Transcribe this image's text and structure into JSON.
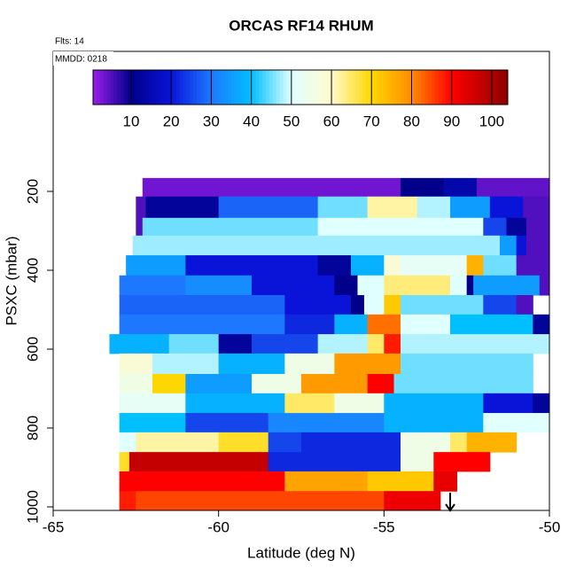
{
  "chart_data": {
    "type": "heatmap",
    "title": "ORCAS RF14 RHUM",
    "notes": [
      "Flts: 14",
      "MMDD: 0218"
    ],
    "x_label": "Latitude (deg N)",
    "y_label": "PSXC (mbar)",
    "xlim": [
      -65,
      -50
    ],
    "xticks": [
      -65,
      -60,
      -55,
      -50
    ],
    "ylim": [
      1009,
      -155
    ],
    "yticks": [
      200,
      400,
      600,
      800,
      1000
    ],
    "colorbar_lim": [
      0.5,
      104
    ],
    "colorbar_ticks": [
      10,
      20,
      30,
      40,
      50,
      60,
      70,
      80,
      90,
      100
    ],
    "colorscale": [
      [
        0,
        "#a020f0"
      ],
      [
        10,
        "#00008b"
      ],
      [
        20,
        "#0a14d8"
      ],
      [
        30,
        "#1e78ff"
      ],
      [
        40,
        "#00bfff"
      ],
      [
        50,
        "#e0ffff"
      ],
      [
        60,
        "#fffacd"
      ],
      [
        70,
        "#ffd700"
      ],
      [
        80,
        "#ff8c00"
      ],
      [
        90,
        "#ff0000"
      ],
      [
        104,
        "#8b0000"
      ]
    ],
    "rows": [
      {
        "p": [
          166,
          213
        ],
        "lat_edges": [
          -62.3,
          -54.5,
          -53.2,
          -52.2,
          -50
        ],
        "values": [
          3,
          10,
          14,
          4
        ]
      },
      {
        "p": [
          213,
          267
        ],
        "lat_edges": [
          -62.5,
          -62.2,
          -60,
          -57,
          -55.5,
          -54,
          -53,
          -51.8,
          -50.8,
          -50
        ],
        "values": [
          5,
          12,
          28,
          45,
          62,
          48,
          35,
          20,
          5
        ]
      },
      {
        "p": [
          267,
          312
        ],
        "lat_edges": [
          -62.5,
          -62.3,
          -57,
          -52,
          -51.3,
          -50.7,
          -50
        ],
        "values": [
          5,
          45,
          50,
          25,
          12,
          5
        ]
      },
      {
        "p": [
          312,
          362
        ],
        "lat_edges": [
          -62.6,
          -51.5,
          -51,
          -50.7,
          -50
        ],
        "values": [
          47,
          35,
          20,
          5
        ]
      },
      {
        "p": [
          362,
          413
        ],
        "lat_edges": [
          -62.8,
          -61,
          -57,
          -56,
          -55,
          -54.5,
          -52.5,
          -52,
          -51,
          -50
        ],
        "values": [
          35,
          20,
          12,
          38,
          58,
          52,
          75,
          45,
          5
        ]
      },
      {
        "p": [
          413,
          463
        ],
        "lat_edges": [
          -63,
          -61,
          -59,
          -56.5,
          -55.8,
          -55,
          -53,
          -52.5,
          -52.3,
          -50.3,
          -50
        ],
        "values": [
          30,
          33,
          20,
          10,
          50,
          64,
          50,
          10,
          35,
          5
        ]
      },
      {
        "p": [
          463,
          512
        ],
        "lat_edges": [
          -63,
          -58,
          -56,
          -55.6,
          -55,
          -54.5,
          -52,
          -51,
          -50.5
        ],
        "values": [
          28,
          20,
          10,
          50,
          72,
          45,
          25,
          5
        ]
      },
      {
        "p": [
          512,
          562
        ],
        "lat_edges": [
          -63,
          -58,
          -56.5,
          -55.5,
          -54.5,
          -53,
          -50.5,
          -50
        ],
        "values": [
          30,
          22,
          38,
          82,
          50,
          40,
          12
        ]
      },
      {
        "p": [
          562,
          611
        ],
        "lat_edges": [
          -63.3,
          -61.5,
          -60,
          -59,
          -57,
          -55.5,
          -55,
          -54.5,
          -50
        ],
        "values": [
          38,
          45,
          12,
          25,
          48,
          65,
          88,
          48
        ]
      },
      {
        "p": [
          611,
          663
        ],
        "lat_edges": [
          -63,
          -62,
          -60,
          -58,
          -56.5,
          -54.5,
          -50.5
        ],
        "values": [
          58,
          48,
          38,
          55,
          78,
          45
        ]
      },
      {
        "p": [
          663,
          712
        ],
        "lat_edges": [
          -63,
          -62,
          -61,
          -59,
          -57.5,
          -55.5,
          -54.7,
          -50.5
        ],
        "values": [
          55,
          70,
          35,
          55,
          78,
          90,
          45
        ]
      },
      {
        "p": [
          712,
          762
        ],
        "lat_edges": [
          -63,
          -61,
          -58,
          -56.5,
          -55,
          -52,
          -50.5,
          -50
        ],
        "values": [
          52,
          38,
          65,
          55,
          38,
          20,
          12
        ]
      },
      {
        "p": [
          762,
          811
        ],
        "lat_edges": [
          -63,
          -61,
          -58.5,
          -55,
          -52,
          -50
        ],
        "values": [
          40,
          25,
          32,
          38,
          50
        ]
      },
      {
        "p": [
          811,
          861
        ],
        "lat_edges": [
          -63,
          -62.5,
          -60,
          -58.5,
          -57.5,
          -54.5,
          -53,
          -52.5,
          -51
        ],
        "values": [
          50,
          62,
          68,
          25,
          22,
          55,
          65,
          75
        ]
      },
      {
        "p": [
          861,
          910
        ],
        "lat_edges": [
          -63,
          -62.7,
          -58.5,
          -54.5,
          -53.5,
          -51.8
        ],
        "values": [
          68,
          97,
          22,
          55,
          90
        ]
      },
      {
        "p": [
          910,
          960
        ],
        "lat_edges": [
          -63,
          -58,
          -55.5,
          -53.5,
          -52.8
        ],
        "values": [
          90,
          77,
          72,
          93
        ]
      },
      {
        "p": [
          960,
          1009
        ],
        "lat_edges": [
          -63,
          -62.5,
          -55,
          -53.3
        ],
        "values": [
          88,
          85,
          92
        ]
      }
    ]
  }
}
